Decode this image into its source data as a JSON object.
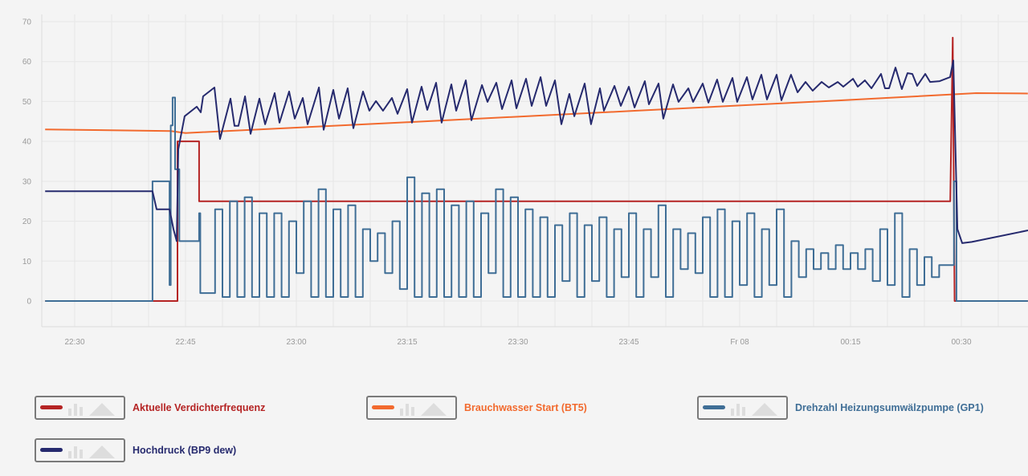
{
  "chart_data": {
    "type": "line",
    "title": "",
    "xlabel": "",
    "ylabel": "",
    "ylim": [
      -6.5,
      72
    ],
    "xlim": [
      "22:25:30",
      "00:39:00"
    ],
    "grid": true,
    "legend_placement": "bottom",
    "y_ticks": [
      "0",
      "10",
      "20",
      "30",
      "40",
      "50",
      "60",
      "70"
    ],
    "x_ticks": [
      {
        "time": "22:30",
        "label": "22:30"
      },
      {
        "time": "22:45",
        "label": "22:45"
      },
      {
        "time": "23:00",
        "label": "23:00"
      },
      {
        "time": "23:15",
        "label": "23:15"
      },
      {
        "time": "23:30",
        "label": "23:30"
      },
      {
        "time": "23:45",
        "label": "23:45"
      },
      {
        "time": "00:00",
        "label": "Fr 08"
      },
      {
        "time": "00:15",
        "label": "00:15"
      },
      {
        "time": "00:30",
        "label": "00:30"
      }
    ],
    "series": [
      {
        "name": "Brauchwasser Start (BT5)",
        "color": "#f26a2e",
        "interpolation": "linear",
        "points": [
          [
            "22:26:00",
            43
          ],
          [
            "22:43:00",
            42.6
          ],
          [
            "22:45:00",
            42.1
          ],
          [
            "23:15:00",
            44.8
          ],
          [
            "23:45:00",
            47.6
          ],
          [
            "00:15:00",
            50.4
          ],
          [
            "00:29:00",
            51.8
          ],
          [
            "00:32:00",
            52.1
          ],
          [
            "00:39:00",
            52
          ]
        ]
      },
      {
        "name": "Aktuelle Verdichterfrequenz",
        "color": "#b52424",
        "interpolation": "linear",
        "points": [
          [
            "22:26:00",
            0
          ],
          [
            "22:43:55",
            0
          ],
          [
            "22:43:55",
            40
          ],
          [
            "22:46:50",
            40
          ],
          [
            "22:46:50",
            25
          ],
          [
            "00:28:30",
            25
          ],
          [
            "00:28:50",
            66
          ],
          [
            "00:29:05",
            0
          ],
          [
            "00:39:00",
            0
          ]
        ]
      },
      {
        "name": "Drehzahl Heizungsumwälzpumpe (GP1)",
        "color": "#3f6e96",
        "interpolation": "step-after",
        "points": [
          [
            "22:26:00",
            0
          ],
          [
            "22:40:32",
            30
          ],
          [
            "22:42:50",
            4
          ],
          [
            "22:43:00",
            44
          ],
          [
            "22:43:15",
            51
          ],
          [
            "22:43:35",
            33
          ],
          [
            "22:44:10",
            15
          ],
          [
            "22:46:50",
            22
          ],
          [
            "22:47:00",
            2
          ],
          [
            "22:49",
            23
          ],
          [
            "22:50",
            1
          ],
          [
            "22:51",
            25
          ],
          [
            "22:52",
            1
          ],
          [
            "22:53",
            26
          ],
          [
            "22:54",
            1
          ],
          [
            "22:55",
            22
          ],
          [
            "22:56",
            1
          ],
          [
            "22:57",
            22
          ],
          [
            "22:58",
            1
          ],
          [
            "22:59",
            20
          ],
          [
            "23:00",
            7
          ],
          [
            "23:01",
            25
          ],
          [
            "23:02",
            1
          ],
          [
            "23:03",
            28
          ],
          [
            "23:04",
            1
          ],
          [
            "23:05",
            23
          ],
          [
            "23:06",
            1
          ],
          [
            "23:07",
            24
          ],
          [
            "23:08",
            1
          ],
          [
            "23:09",
            18
          ],
          [
            "23:10",
            10
          ],
          [
            "23:11",
            17
          ],
          [
            "23:12",
            7
          ],
          [
            "23:13",
            20
          ],
          [
            "23:14",
            3
          ],
          [
            "23:15",
            31
          ],
          [
            "23:16",
            1
          ],
          [
            "23:17",
            27
          ],
          [
            "23:18",
            1
          ],
          [
            "23:19",
            28
          ],
          [
            "23:20",
            1
          ],
          [
            "23:21",
            24
          ],
          [
            "23:22",
            1
          ],
          [
            "23:23",
            25
          ],
          [
            "23:24",
            1
          ],
          [
            "23:25",
            22
          ],
          [
            "23:26",
            7
          ],
          [
            "23:27",
            28
          ],
          [
            "23:28",
            1
          ],
          [
            "23:29",
            26
          ],
          [
            "23:30",
            1
          ],
          [
            "23:31",
            23
          ],
          [
            "23:32",
            1
          ],
          [
            "23:33",
            21
          ],
          [
            "23:34",
            1
          ],
          [
            "23:35",
            19
          ],
          [
            "23:36",
            5
          ],
          [
            "23:37",
            22
          ],
          [
            "23:38",
            1
          ],
          [
            "23:39",
            19
          ],
          [
            "23:40",
            5
          ],
          [
            "23:41",
            21
          ],
          [
            "23:42",
            1
          ],
          [
            "23:43",
            18
          ],
          [
            "23:44",
            6
          ],
          [
            "23:45",
            22
          ],
          [
            "23:46",
            1
          ],
          [
            "23:47",
            18
          ],
          [
            "23:48",
            6
          ],
          [
            "23:49",
            24
          ],
          [
            "23:50",
            1
          ],
          [
            "23:51",
            18
          ],
          [
            "23:52",
            8
          ],
          [
            "23:53",
            17
          ],
          [
            "23:54",
            7
          ],
          [
            "23:55",
            21
          ],
          [
            "23:56",
            1
          ],
          [
            "23:57",
            23
          ],
          [
            "23:58",
            1
          ],
          [
            "23:59",
            20
          ],
          [
            "00:00",
            4
          ],
          [
            "00:01",
            22
          ],
          [
            "00:02",
            1
          ],
          [
            "00:03",
            18
          ],
          [
            "00:04",
            4
          ],
          [
            "00:05",
            23
          ],
          [
            "00:06",
            1
          ],
          [
            "00:07",
            15
          ],
          [
            "00:08",
            6
          ],
          [
            "00:09",
            13
          ],
          [
            "00:10",
            8
          ],
          [
            "00:11",
            12
          ],
          [
            "00:12",
            8
          ],
          [
            "00:13",
            14
          ],
          [
            "00:14",
            8
          ],
          [
            "00:15",
            12
          ],
          [
            "00:16",
            8
          ],
          [
            "00:17",
            13
          ],
          [
            "00:18",
            5
          ],
          [
            "00:19",
            18
          ],
          [
            "00:20",
            4
          ],
          [
            "00:21",
            22
          ],
          [
            "00:22",
            1
          ],
          [
            "00:23",
            13
          ],
          [
            "00:24",
            4
          ],
          [
            "00:25",
            11
          ],
          [
            "00:26",
            6
          ],
          [
            "00:27",
            9
          ],
          [
            "00:29:00",
            30
          ],
          [
            "00:29:20",
            0
          ],
          [
            "00:39:00",
            0
          ]
        ]
      },
      {
        "name": "Hochdruck (BP9 dew)",
        "color": "#262a6e",
        "interpolation": "linear",
        "points": [
          [
            "22:26:00",
            27.5
          ],
          [
            "22:40:32",
            27.5
          ],
          [
            "22:41:05",
            23
          ],
          [
            "22:42:50",
            23
          ],
          [
            "22:43:22",
            18
          ],
          [
            "22:43:48",
            15
          ],
          [
            "22:44:01",
            38
          ],
          [
            "22:44:53",
            46.3
          ],
          [
            "22:46:31",
            48.7
          ],
          [
            "22:47:04",
            47.3
          ],
          [
            "22:47:23",
            51.3
          ],
          [
            "22:48:55",
            53.5
          ],
          [
            "22:49:40",
            40.6
          ],
          [
            "22:51:05",
            50.7
          ],
          [
            "22:51:38",
            43.9
          ],
          [
            "22:52:10",
            43.9
          ],
          [
            "22:53:03",
            51.3
          ],
          [
            "22:53:48",
            41.9
          ],
          [
            "22:55:00",
            50.7
          ],
          [
            "22:55:46",
            44.3
          ],
          [
            "22:57:04",
            52.1
          ],
          [
            "22:57:43",
            44.7
          ],
          [
            "22:59:01",
            52.5
          ],
          [
            "22:59:47",
            45.7
          ],
          [
            "23:00:52",
            50.9
          ],
          [
            "23:01:31",
            44.3
          ],
          [
            "23:03:03",
            53.5
          ],
          [
            "23:03:42",
            42.9
          ],
          [
            "23:05:00",
            52.9
          ],
          [
            "23:05:46",
            45.7
          ],
          [
            "23:06:57",
            53.3
          ],
          [
            "23:07:43",
            43.3
          ],
          [
            "23:09:01",
            52.5
          ],
          [
            "23:09:53",
            47.7
          ],
          [
            "23:10:46",
            50.1
          ],
          [
            "23:11:44",
            47.7
          ],
          [
            "23:12:56",
            50.9
          ],
          [
            "23:13:42",
            46.9
          ],
          [
            "23:15:00",
            53.1
          ],
          [
            "23:15:39",
            44.7
          ],
          [
            "23:16:57",
            53.7
          ],
          [
            "23:17:43",
            47.9
          ],
          [
            "23:18:55",
            54.7
          ],
          [
            "23:19:40",
            44.7
          ],
          [
            "23:20:59",
            54.3
          ],
          [
            "23:21:38",
            47.7
          ],
          [
            "23:22:56",
            55.3
          ],
          [
            "23:23:42",
            45.3
          ],
          [
            "23:25:07",
            54.1
          ],
          [
            "23:25:52",
            49.9
          ],
          [
            "23:27:04",
            54.7
          ],
          [
            "23:27:50",
            48.1
          ],
          [
            "23:29:08",
            55.3
          ],
          [
            "23:29:47",
            48.3
          ],
          [
            "23:31:05",
            55.7
          ],
          [
            "23:31:51",
            48.9
          ],
          [
            "23:33:03",
            56.1
          ],
          [
            "23:33:48",
            48.9
          ],
          [
            "23:35:00",
            55.3
          ],
          [
            "23:35:52",
            44.3
          ],
          [
            "23:36:57",
            51.9
          ],
          [
            "23:37:37",
            46.3
          ],
          [
            "23:39:01",
            54.5
          ],
          [
            "23:39:53",
            44.3
          ],
          [
            "23:41:05",
            53.3
          ],
          [
            "23:41:38",
            47.7
          ],
          [
            "23:43:03",
            53.9
          ],
          [
            "23:43:55",
            48.9
          ],
          [
            "23:45:00",
            53.7
          ],
          [
            "23:45:46",
            48.5
          ],
          [
            "23:47:10",
            55.1
          ],
          [
            "23:47:43",
            49.3
          ],
          [
            "23:49:01",
            54.5
          ],
          [
            "23:49:40",
            45.7
          ],
          [
            "23:50:59",
            54.3
          ],
          [
            "23:51:44",
            49.9
          ],
          [
            "23:53:03",
            53.3
          ],
          [
            "23:53:42",
            49.9
          ],
          [
            "23:55:00",
            54.5
          ],
          [
            "23:55:46",
            49.7
          ],
          [
            "23:56:57",
            55.5
          ],
          [
            "23:57:43",
            49.9
          ],
          [
            "23:59:01",
            55.9
          ],
          [
            "23:59:40",
            49.9
          ],
          [
            "00:00:59",
            56.1
          ],
          [
            "00:01:44",
            50.5
          ],
          [
            "00:02:56",
            56.7
          ],
          [
            "00:03:42",
            50.5
          ],
          [
            "00:05:00",
            56.7
          ],
          [
            "00:05:39",
            50.3
          ],
          [
            "00:06:57",
            56.7
          ],
          [
            "00:07:50",
            52.3
          ],
          [
            "00:08:55",
            54.9
          ],
          [
            "00:09:53",
            52.7
          ],
          [
            "00:11:05",
            54.9
          ],
          [
            "00:12:04",
            53.5
          ],
          [
            "00:13:16",
            54.9
          ],
          [
            "00:14:01",
            53.7
          ],
          [
            "00:15:20",
            55.7
          ],
          [
            "00:15:59",
            53.7
          ],
          [
            "00:16:57",
            55.3
          ],
          [
            "00:17:50",
            53.3
          ],
          [
            "00:19:08",
            56.9
          ],
          [
            "00:19:40",
            53.3
          ],
          [
            "00:20:13",
            53.3
          ],
          [
            "00:21:05",
            58.5
          ],
          [
            "00:21:57",
            53.1
          ],
          [
            "00:22:43",
            57.1
          ],
          [
            "00:23:22",
            56.9
          ],
          [
            "00:24:01",
            53.9
          ],
          [
            "00:25:07",
            56.9
          ],
          [
            "00:25:46",
            54.9
          ],
          [
            "00:27:04",
            55.1
          ],
          [
            "00:28:29",
            56.1
          ],
          [
            "00:28:55",
            60.3
          ],
          [
            "00:29:28",
            18
          ],
          [
            "00:30:07",
            14.5
          ],
          [
            "00:31:25",
            14.8
          ],
          [
            "00:39:01",
            17.7
          ]
        ]
      }
    ]
  },
  "legend": [
    {
      "label": "Aktuelle Verdichterfrequenz",
      "color": "#b52424"
    },
    {
      "label": "Brauchwasser Start (BT5)",
      "color": "#f26a2e"
    },
    {
      "label": "Drehzahl Heizungsumwälzpumpe (GP1)",
      "color": "#3f6e96"
    },
    {
      "label": "Hochdruck (BP9 dew)",
      "color": "#262a6e"
    }
  ],
  "legend_icons": [
    "line-icon",
    "bar-chart-icon",
    "area-chart-icon"
  ]
}
